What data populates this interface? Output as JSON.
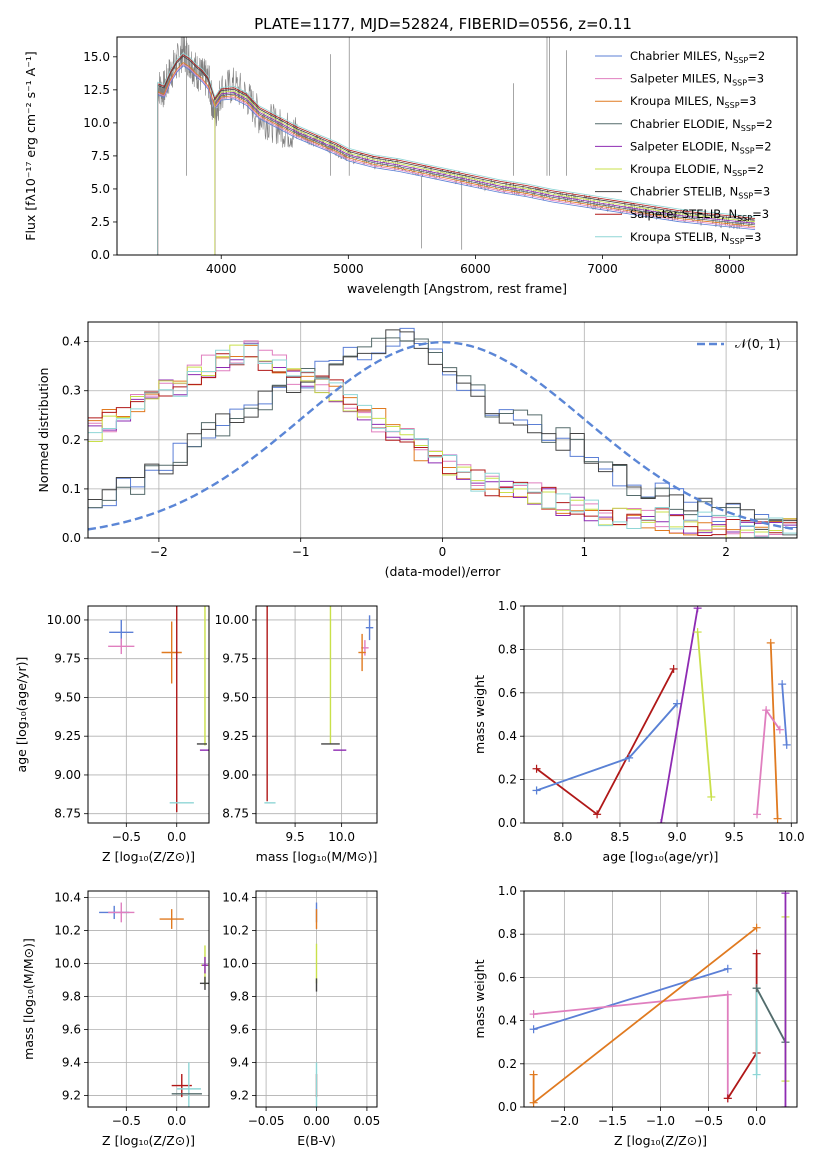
{
  "figure": {
    "title": "PLATE=1177, MJD=52824, FIBERID=0556, z=0.11",
    "legend": [
      {
        "label": "Chabrier MILES, N",
        "sub": "SSP",
        "suffix": "=2",
        "color": "#5b7fd6"
      },
      {
        "label": "Salpeter MILES, N",
        "sub": "SSP",
        "suffix": "=3",
        "color": "#e07fbf"
      },
      {
        "label": "Kroupa MILES, N",
        "sub": "SSP",
        "suffix": "=3",
        "color": "#e07a20"
      },
      {
        "label": "Chabrier ELODIE, N",
        "sub": "SSP",
        "suffix": "=2",
        "color": "#556b6b"
      },
      {
        "label": "Salpeter ELODIE, N",
        "sub": "SSP",
        "suffix": "=2",
        "color": "#8e2bb3"
      },
      {
        "label": "Kroupa ELODIE, N",
        "sub": "SSP",
        "suffix": "=2",
        "color": "#c9e04a"
      },
      {
        "label": "Chabrier STELIB, N",
        "sub": "SSP",
        "suffix": "=3",
        "color": "#444444"
      },
      {
        "label": "Salpeter STELIB, N",
        "sub": "SSP",
        "suffix": "=3",
        "color": "#b01818"
      },
      {
        "label": "Kroupa STELIB, N",
        "sub": "SSP",
        "suffix": "=3",
        "color": "#8fd6d6"
      }
    ],
    "data_color": "#808080",
    "gauss_color": "#5b86d6"
  },
  "chart_data": [
    {
      "type": "line",
      "id": "spectrum",
      "xlabel": "wavelength [Angstrom, rest frame]",
      "ylabel": "Flux [fλ10⁻¹⁷ erg cm⁻² s⁻¹ A⁻¹]",
      "xlim": [
        3180,
        8530
      ],
      "ylim": [
        0,
        16.5
      ],
      "xticks": [
        4000,
        5000,
        6000,
        7000,
        8000
      ],
      "yticks": [
        "0.0",
        "2.5",
        "5.0",
        "7.5",
        "10.0",
        "12.5",
        "15.0"
      ],
      "grid": false,
      "legend_placement": "right",
      "data_x": [
        3500,
        3550,
        3600,
        3650,
        3700,
        3750,
        3800,
        3850,
        3900,
        3950,
        4000,
        4100,
        4200,
        4300,
        4400,
        4500,
        4600,
        4700,
        4800,
        4900,
        5000,
        5200,
        5400,
        5600,
        5800,
        6000,
        6200,
        6400,
        6600,
        6800,
        7000,
        7200,
        7400,
        7600,
        7800,
        8000,
        8200
      ],
      "data_y": [
        12.8,
        12.5,
        13.8,
        14.5,
        15.5,
        14.8,
        14.0,
        13.5,
        13.2,
        10.5,
        12.5,
        12.8,
        12.0,
        10.5,
        10.0,
        9.5,
        9.2,
        8.8,
        8.4,
        8.0,
        7.5,
        7.0,
        6.8,
        6.3,
        6.0,
        5.5,
        5.2,
        4.8,
        4.5,
        4.2,
        3.8,
        3.5,
        3.2,
        3.0,
        2.7,
        2.5,
        2.3
      ],
      "model_y": [
        12.6,
        12.4,
        13.5,
        14.3,
        14.8,
        14.5,
        14.0,
        13.6,
        13.0,
        11.5,
        12.2,
        12.3,
        11.8,
        10.8,
        10.3,
        9.8,
        9.3,
        8.9,
        8.5,
        8.1,
        7.6,
        7.1,
        6.8,
        6.4,
        6.0,
        5.6,
        5.2,
        4.9,
        4.5,
        4.2,
        3.9,
        3.6,
        3.3,
        3.0,
        2.8,
        2.6,
        2.4
      ]
    },
    {
      "type": "line",
      "id": "residuals",
      "xlabel": "(data-model)/error",
      "ylabel": "Normed distribution",
      "xlim": [
        -2.5,
        2.5
      ],
      "ylim": [
        0,
        0.44
      ],
      "xticks": [
        "−2",
        "−1",
        "0",
        "1",
        "2"
      ],
      "yticks": [
        "0.0",
        "0.1",
        "0.2",
        "0.3",
        "0.4"
      ],
      "grid": true,
      "legend_label": "𝒩(0, 1)",
      "legend_placement": "top-right",
      "bins": [
        -2.5,
        -2.4,
        -2.3,
        -2.2,
        -2.1,
        -2.0,
        -1.9,
        -1.8,
        -1.7,
        -1.6,
        -1.5,
        -1.4,
        -1.3,
        -1.2,
        -1.1,
        -1.0,
        -0.9,
        -0.8,
        -0.7,
        -0.6,
        -0.5,
        -0.4,
        -0.3,
        -0.2,
        -0.1,
        0.0,
        0.1,
        0.2,
        0.3,
        0.4,
        0.5,
        0.6,
        0.7,
        0.8,
        0.9,
        1.0,
        1.1,
        1.2,
        1.3,
        1.4,
        1.5,
        1.6,
        1.7,
        1.8,
        1.9,
        2.0,
        2.1,
        2.2,
        2.3,
        2.4
      ],
      "hist_a": [
        0.22,
        0.24,
        0.26,
        0.27,
        0.28,
        0.3,
        0.31,
        0.33,
        0.35,
        0.36,
        0.37,
        0.38,
        0.36,
        0.35,
        0.33,
        0.32,
        0.31,
        0.3,
        0.28,
        0.26,
        0.24,
        0.22,
        0.2,
        0.18,
        0.17,
        0.15,
        0.13,
        0.12,
        0.11,
        0.1,
        0.1,
        0.09,
        0.08,
        0.07,
        0.07,
        0.06,
        0.05,
        0.05,
        0.04,
        0.04,
        0.04,
        0.03,
        0.03,
        0.03,
        0.03,
        0.02,
        0.02,
        0.02,
        0.02,
        0.02
      ],
      "hist_b": [
        0.07,
        0.08,
        0.1,
        0.11,
        0.13,
        0.15,
        0.17,
        0.19,
        0.21,
        0.23,
        0.24,
        0.26,
        0.28,
        0.3,
        0.32,
        0.33,
        0.34,
        0.35,
        0.37,
        0.38,
        0.39,
        0.4,
        0.41,
        0.39,
        0.37,
        0.34,
        0.31,
        0.29,
        0.27,
        0.25,
        0.24,
        0.23,
        0.21,
        0.2,
        0.19,
        0.17,
        0.15,
        0.13,
        0.11,
        0.1,
        0.09,
        0.08,
        0.07,
        0.06,
        0.05,
        0.05,
        0.04,
        0.04,
        0.03,
        0.03
      ]
    },
    {
      "type": "scatter",
      "id": "age_vs_z",
      "xlabel": "Z [log₁₀(Z/Z⊙)]",
      "ylabel": "age  [log₁₀(age/yr)]",
      "xlim": [
        -0.88,
        0.32
      ],
      "ylim": [
        8.69,
        10.09
      ],
      "xticks": [
        -0.5,
        0.0
      ],
      "xticklabels": [
        "−0.5",
        "0.0"
      ],
      "yticks": [
        8.75,
        9.0,
        9.25,
        9.5,
        9.75,
        10.0
      ],
      "yticklabels": [
        "8.75",
        "9.00",
        "9.25",
        "9.50",
        "9.75",
        "10.00"
      ],
      "grid": true,
      "points": [
        {
          "x": -0.55,
          "y": 9.92,
          "xe": 0.12,
          "ye": 0.08,
          "c": "#5b7fd6"
        },
        {
          "x": -0.55,
          "y": 9.83,
          "xe": 0.13,
          "ye": 0.05,
          "c": "#e07fbf"
        },
        {
          "x": -0.05,
          "y": 9.79,
          "xe": 0.1,
          "ye": 0.2,
          "c": "#e07a20"
        },
        {
          "x": 0.0,
          "y": 9.66,
          "xe": 0.0,
          "ye": 0.9,
          "c": "#b01818"
        },
        {
          "x": 0.28,
          "y": 9.94,
          "xe": 0.0,
          "ye": 0.75,
          "c": "#c9e04a"
        },
        {
          "x": 0.28,
          "y": 9.16,
          "xe": 0.05,
          "ye": 0.0,
          "c": "#8e2bb3"
        },
        {
          "x": 0.05,
          "y": 8.82,
          "xe": 0.12,
          "ye": 0.0,
          "c": "#8fd6d6"
        },
        {
          "x": 0.25,
          "y": 9.2,
          "xe": 0.05,
          "ye": 0.0,
          "c": "#444444"
        }
      ]
    },
    {
      "type": "scatter",
      "id": "age_vs_mass",
      "xlabel": "mass [log₁₀(M/M⊙)]",
      "ylabel": "",
      "xlim": [
        9.08,
        10.38
      ],
      "ylim": [
        8.69,
        10.09
      ],
      "xticks": [
        9.5,
        10.0
      ],
      "xticklabels": [
        "9.5",
        "10.0"
      ],
      "yticks": [
        8.75,
        9.0,
        9.25,
        9.5,
        9.75,
        10.0
      ],
      "yticklabels": [
        "8.75",
        "9.00",
        "9.25",
        "9.50",
        "9.75",
        "10.00"
      ],
      "grid": true,
      "points": [
        {
          "x": 10.3,
          "y": 9.95,
          "xe": 0.04,
          "ye": 0.08,
          "c": "#5b7fd6"
        },
        {
          "x": 10.25,
          "y": 9.82,
          "xe": 0.04,
          "ye": 0.05,
          "c": "#e07fbf"
        },
        {
          "x": 10.22,
          "y": 9.79,
          "xe": 0.04,
          "ye": 0.12,
          "c": "#e07a20"
        },
        {
          "x": 9.2,
          "y": 9.63,
          "xe": 0.0,
          "ye": 0.8,
          "c": "#b01818"
        },
        {
          "x": 9.88,
          "y": 9.93,
          "xe": 0.0,
          "ye": 0.73,
          "c": "#c9e04a"
        },
        {
          "x": 9.98,
          "y": 9.16,
          "xe": 0.07,
          "ye": 0.0,
          "c": "#8e2bb3"
        },
        {
          "x": 9.23,
          "y": 8.82,
          "xe": 0.06,
          "ye": 0.0,
          "c": "#8fd6d6"
        },
        {
          "x": 9.88,
          "y": 9.2,
          "xe": 0.1,
          "ye": 0.0,
          "c": "#444444"
        }
      ]
    },
    {
      "type": "line",
      "id": "weight_vs_age",
      "xlabel": "age  [log₁₀(age/yr)]",
      "ylabel": "mass weight",
      "xlim": [
        7.66,
        10.05
      ],
      "ylim": [
        0,
        1
      ],
      "xticks": [
        8.0,
        8.5,
        9.0,
        9.5,
        10.0
      ],
      "xticklabels": [
        "8.0",
        "8.5",
        "9.0",
        "9.5",
        "10.0"
      ],
      "yticks": [
        0,
        0.2,
        0.4,
        0.6,
        0.8,
        1.0
      ],
      "yticklabels": [
        "0.0",
        "0.2",
        "0.4",
        "0.6",
        "0.8",
        "1.0"
      ],
      "grid": true,
      "series": [
        {
          "c": "#b01818",
          "x": [
            7.77,
            8.3,
            8.97
          ],
          "y": [
            0.25,
            0.04,
            0.71
          ]
        },
        {
          "c": "#8fd6d6",
          "x": [
            7.77,
            8.58,
            9.0
          ],
          "y": [
            0.15,
            0.3,
            0.55
          ]
        },
        {
          "c": "#5b7fd6",
          "x": [
            7.77,
            8.58,
            9.0
          ],
          "y": [
            0.15,
            0.3,
            0.55
          ]
        },
        {
          "c": "#8e2bb3",
          "x": [
            8.86,
            9.18
          ],
          "y": [
            0.0,
            0.99
          ]
        },
        {
          "c": "#c9e04a",
          "x": [
            9.18,
            9.3
          ],
          "y": [
            0.88,
            0.12
          ]
        },
        {
          "c": "#e07a20",
          "x": [
            9.82,
            9.88
          ],
          "y": [
            0.83,
            0.02
          ]
        },
        {
          "c": "#e07fbf",
          "x": [
            9.7,
            9.78,
            9.9
          ],
          "y": [
            0.04,
            0.52,
            0.43
          ]
        },
        {
          "c": "#5b7fd6",
          "x": [
            9.92,
            9.96
          ],
          "y": [
            0.64,
            0.36
          ]
        }
      ]
    },
    {
      "type": "scatter",
      "id": "mass_vs_z",
      "xlabel": "Z [log₁₀(Z/Z⊙)]",
      "ylabel": "mass [log₁₀(M/M⊙)]",
      "xlim": [
        -0.88,
        0.32
      ],
      "ylim": [
        9.13,
        10.44
      ],
      "xticks": [
        -0.5,
        0.0
      ],
      "xticklabels": [
        "−0.5",
        "0.0"
      ],
      "yticks": [
        9.2,
        9.4,
        9.6,
        9.8,
        10.0,
        10.2,
        10.4
      ],
      "yticklabels": [
        "9.2",
        "9.4",
        "9.6",
        "9.8",
        "10.0",
        "10.2",
        "10.4"
      ],
      "grid": true,
      "points": [
        {
          "x": -0.62,
          "y": 10.31,
          "xe": 0.15,
          "ye": 0.04,
          "c": "#5b7fd6"
        },
        {
          "x": -0.55,
          "y": 10.31,
          "xe": 0.13,
          "ye": 0.06,
          "c": "#e07fbf"
        },
        {
          "x": -0.05,
          "y": 10.27,
          "xe": 0.12,
          "ye": 0.06,
          "c": "#e07a20"
        },
        {
          "x": 0.05,
          "y": 9.26,
          "xe": 0.1,
          "ye": 0.07,
          "c": "#b01818"
        },
        {
          "x": 0.28,
          "y": 9.99,
          "xe": 0.04,
          "ye": 0.12,
          "c": "#c9e04a"
        },
        {
          "x": 0.28,
          "y": 9.99,
          "xe": 0.03,
          "ye": 0.05,
          "c": "#8e2bb3"
        },
        {
          "x": 0.12,
          "y": 9.24,
          "xe": 0.12,
          "ye": 0.16,
          "c": "#8fd6d6"
        },
        {
          "x": 0.28,
          "y": 9.88,
          "xe": 0.05,
          "ye": 0.04,
          "c": "#444444"
        },
        {
          "x": 0.1,
          "y": 9.21,
          "xe": 0.15,
          "ye": 0.0,
          "c": "#556b6b"
        }
      ]
    },
    {
      "type": "scatter",
      "id": "mass_vs_ebv",
      "xlabel": "E(B-V)",
      "ylabel": "",
      "xlim": [
        -0.06,
        0.06
      ],
      "ylim": [
        9.13,
        10.44
      ],
      "xticks": [
        -0.05,
        0.0,
        0.05
      ],
      "xticklabels": [
        "−0.05",
        "0.00",
        "0.05"
      ],
      "yticks": [
        9.2,
        9.4,
        9.6,
        9.8,
        10.0,
        10.2,
        10.4
      ],
      "yticklabels": [
        "9.2",
        "9.4",
        "9.6",
        "9.8",
        "10.0",
        "10.2",
        "10.4"
      ],
      "grid": true,
      "points": [
        {
          "x": 0.0,
          "y": 10.31,
          "xe": 0.0,
          "ye": 0.06,
          "c": "#5b7fd6"
        },
        {
          "x": 0.0,
          "y": 10.27,
          "xe": 0.0,
          "ye": 0.06,
          "c": "#e07a20"
        },
        {
          "x": 0.0,
          "y": 10.0,
          "xe": 0.0,
          "ye": 0.12,
          "c": "#c9e04a"
        },
        {
          "x": 0.0,
          "y": 9.87,
          "xe": 0.0,
          "ye": 0.04,
          "c": "#444444"
        },
        {
          "x": 0.0,
          "y": 9.26,
          "xe": 0.0,
          "ye": 0.07,
          "c": "#b01818"
        },
        {
          "x": 0.0,
          "y": 9.24,
          "xe": 0.0,
          "ye": 0.16,
          "c": "#8fd6d6"
        }
      ]
    },
    {
      "type": "line",
      "id": "weight_vs_z",
      "xlabel": "Z [log₁₀(Z/Z⊙)]",
      "ylabel": "mass weight",
      "xlim": [
        -2.42,
        0.42
      ],
      "ylim": [
        0,
        1
      ],
      "xticks": [
        -2.0,
        -1.5,
        -1.0,
        -0.5,
        0.0
      ],
      "xticklabels": [
        "−2.0",
        "−1.5",
        "−1.0",
        "−0.5",
        "0.0"
      ],
      "yticks": [
        0,
        0.2,
        0.4,
        0.6,
        0.8,
        1.0
      ],
      "yticklabels": [
        "0.0",
        "0.2",
        "0.4",
        "0.6",
        "0.8",
        "1.0"
      ],
      "grid": true,
      "series": [
        {
          "c": "#5b7fd6",
          "x": [
            -2.32,
            -0.3
          ],
          "y": [
            0.36,
            0.64
          ]
        },
        {
          "c": "#e07fbf",
          "x": [
            -2.32,
            -0.3,
            -0.3
          ],
          "y": [
            0.43,
            0.52,
            0.04
          ]
        },
        {
          "c": "#e07a20",
          "x": [
            -2.32,
            -2.32,
            0.0
          ],
          "y": [
            0.15,
            0.02,
            0.83
          ]
        },
        {
          "c": "#b01818",
          "x": [
            -0.3,
            0.0,
            0.0
          ],
          "y": [
            0.04,
            0.25,
            0.71
          ]
        },
        {
          "c": "#8fd6d6",
          "x": [
            0.0,
            0.0,
            0.3
          ],
          "y": [
            0.15,
            0.55,
            0.3
          ]
        },
        {
          "c": "#556b6b",
          "x": [
            0.0,
            0.3
          ],
          "y": [
            0.55,
            0.3
          ]
        },
        {
          "c": "#c9e04a",
          "x": [
            0.3,
            0.3
          ],
          "y": [
            0.12,
            0.88
          ]
        },
        {
          "c": "#8e2bb3",
          "x": [
            0.3,
            0.3
          ],
          "y": [
            0.0,
            0.99
          ]
        }
      ]
    }
  ]
}
